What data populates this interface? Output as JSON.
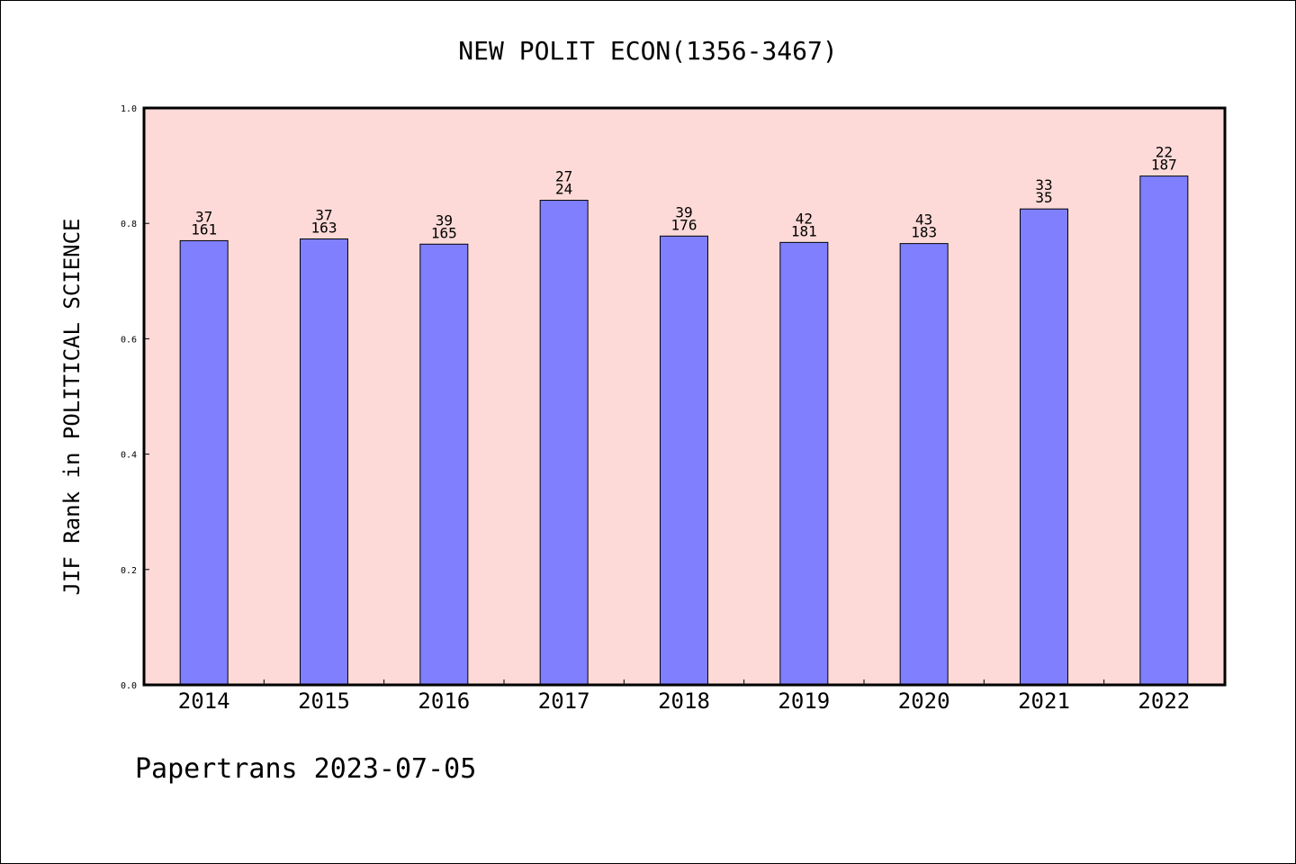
{
  "chart_data": {
    "type": "bar",
    "title": "NEW POLIT ECON(1356-3467)",
    "ylabel": "JIF Rank in POLITICAL SCIENCE",
    "xlabel": "",
    "ylim": [
      0,
      1.0
    ],
    "yticks": [
      "0.0",
      "0.2",
      "0.4",
      "0.6",
      "0.8",
      "1.0"
    ],
    "categories": [
      "2014",
      "2015",
      "2016",
      "2017",
      "2018",
      "2019",
      "2020",
      "2021",
      "2022"
    ],
    "values": [
      0.77,
      0.773,
      0.764,
      0.84,
      0.778,
      0.767,
      0.765,
      0.825,
      0.882
    ],
    "rank_labels": [
      "37",
      "37",
      "39",
      "27",
      "39",
      "42",
      "43",
      "33",
      "22"
    ],
    "total_labels": [
      "161",
      "163",
      "165",
      "24",
      "176",
      "181",
      "183",
      "35",
      "187"
    ],
    "grid": false,
    "colors": {
      "plot_background": "#fddad8",
      "bar_fill": "#8080ff",
      "bar_stroke": "#000000"
    }
  },
  "footer": "Papertrans 2023-07-05"
}
